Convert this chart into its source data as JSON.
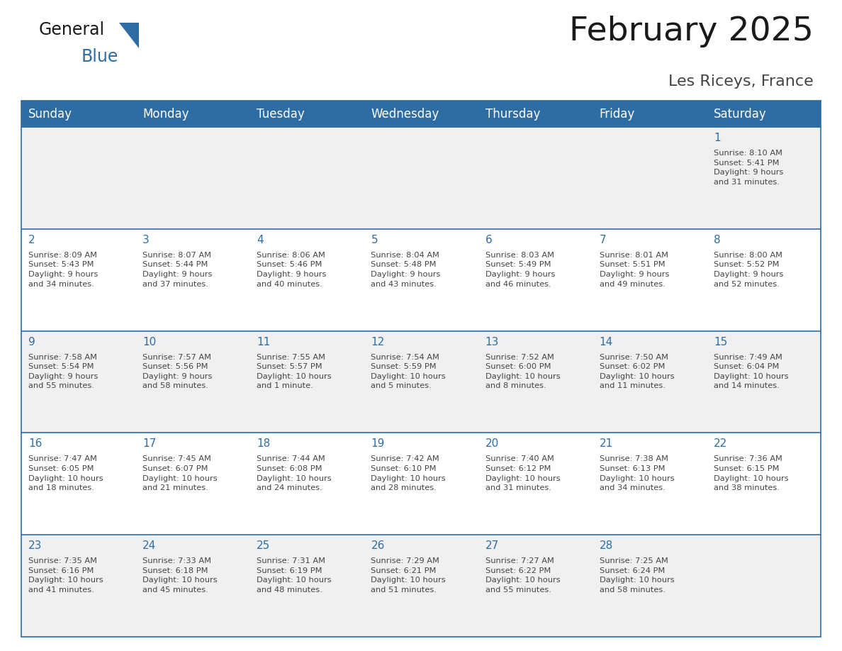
{
  "title": "February 2025",
  "subtitle": "Les Riceys, France",
  "header_bg_color": "#2E6DA4",
  "header_text_color": "#FFFFFF",
  "row_bg_even": "#FFFFFF",
  "row_bg_odd": "#F0F0F0",
  "border_color": "#2E6DA4",
  "day_number_color": "#2E6DA4",
  "cell_text_color": "#444444",
  "days_of_week": [
    "Sunday",
    "Monday",
    "Tuesday",
    "Wednesday",
    "Thursday",
    "Friday",
    "Saturday"
  ],
  "weeks": [
    [
      {
        "day": "",
        "info": ""
      },
      {
        "day": "",
        "info": ""
      },
      {
        "day": "",
        "info": ""
      },
      {
        "day": "",
        "info": ""
      },
      {
        "day": "",
        "info": ""
      },
      {
        "day": "",
        "info": ""
      },
      {
        "day": "1",
        "info": "Sunrise: 8:10 AM\nSunset: 5:41 PM\nDaylight: 9 hours\nand 31 minutes."
      }
    ],
    [
      {
        "day": "2",
        "info": "Sunrise: 8:09 AM\nSunset: 5:43 PM\nDaylight: 9 hours\nand 34 minutes."
      },
      {
        "day": "3",
        "info": "Sunrise: 8:07 AM\nSunset: 5:44 PM\nDaylight: 9 hours\nand 37 minutes."
      },
      {
        "day": "4",
        "info": "Sunrise: 8:06 AM\nSunset: 5:46 PM\nDaylight: 9 hours\nand 40 minutes."
      },
      {
        "day": "5",
        "info": "Sunrise: 8:04 AM\nSunset: 5:48 PM\nDaylight: 9 hours\nand 43 minutes."
      },
      {
        "day": "6",
        "info": "Sunrise: 8:03 AM\nSunset: 5:49 PM\nDaylight: 9 hours\nand 46 minutes."
      },
      {
        "day": "7",
        "info": "Sunrise: 8:01 AM\nSunset: 5:51 PM\nDaylight: 9 hours\nand 49 minutes."
      },
      {
        "day": "8",
        "info": "Sunrise: 8:00 AM\nSunset: 5:52 PM\nDaylight: 9 hours\nand 52 minutes."
      }
    ],
    [
      {
        "day": "9",
        "info": "Sunrise: 7:58 AM\nSunset: 5:54 PM\nDaylight: 9 hours\nand 55 minutes."
      },
      {
        "day": "10",
        "info": "Sunrise: 7:57 AM\nSunset: 5:56 PM\nDaylight: 9 hours\nand 58 minutes."
      },
      {
        "day": "11",
        "info": "Sunrise: 7:55 AM\nSunset: 5:57 PM\nDaylight: 10 hours\nand 1 minute."
      },
      {
        "day": "12",
        "info": "Sunrise: 7:54 AM\nSunset: 5:59 PM\nDaylight: 10 hours\nand 5 minutes."
      },
      {
        "day": "13",
        "info": "Sunrise: 7:52 AM\nSunset: 6:00 PM\nDaylight: 10 hours\nand 8 minutes."
      },
      {
        "day": "14",
        "info": "Sunrise: 7:50 AM\nSunset: 6:02 PM\nDaylight: 10 hours\nand 11 minutes."
      },
      {
        "day": "15",
        "info": "Sunrise: 7:49 AM\nSunset: 6:04 PM\nDaylight: 10 hours\nand 14 minutes."
      }
    ],
    [
      {
        "day": "16",
        "info": "Sunrise: 7:47 AM\nSunset: 6:05 PM\nDaylight: 10 hours\nand 18 minutes."
      },
      {
        "day": "17",
        "info": "Sunrise: 7:45 AM\nSunset: 6:07 PM\nDaylight: 10 hours\nand 21 minutes."
      },
      {
        "day": "18",
        "info": "Sunrise: 7:44 AM\nSunset: 6:08 PM\nDaylight: 10 hours\nand 24 minutes."
      },
      {
        "day": "19",
        "info": "Sunrise: 7:42 AM\nSunset: 6:10 PM\nDaylight: 10 hours\nand 28 minutes."
      },
      {
        "day": "20",
        "info": "Sunrise: 7:40 AM\nSunset: 6:12 PM\nDaylight: 10 hours\nand 31 minutes."
      },
      {
        "day": "21",
        "info": "Sunrise: 7:38 AM\nSunset: 6:13 PM\nDaylight: 10 hours\nand 34 minutes."
      },
      {
        "day": "22",
        "info": "Sunrise: 7:36 AM\nSunset: 6:15 PM\nDaylight: 10 hours\nand 38 minutes."
      }
    ],
    [
      {
        "day": "23",
        "info": "Sunrise: 7:35 AM\nSunset: 6:16 PM\nDaylight: 10 hours\nand 41 minutes."
      },
      {
        "day": "24",
        "info": "Sunrise: 7:33 AM\nSunset: 6:18 PM\nDaylight: 10 hours\nand 45 minutes."
      },
      {
        "day": "25",
        "info": "Sunrise: 7:31 AM\nSunset: 6:19 PM\nDaylight: 10 hours\nand 48 minutes."
      },
      {
        "day": "26",
        "info": "Sunrise: 7:29 AM\nSunset: 6:21 PM\nDaylight: 10 hours\nand 51 minutes."
      },
      {
        "day": "27",
        "info": "Sunrise: 7:27 AM\nSunset: 6:22 PM\nDaylight: 10 hours\nand 55 minutes."
      },
      {
        "day": "28",
        "info": "Sunrise: 7:25 AM\nSunset: 6:24 PM\nDaylight: 10 hours\nand 58 minutes."
      },
      {
        "day": "",
        "info": ""
      }
    ]
  ],
  "logo_text_general": "General",
  "logo_text_blue": "Blue",
  "title_fontsize": 34,
  "subtitle_fontsize": 16,
  "header_fontsize": 12,
  "day_number_fontsize": 11,
  "cell_text_fontsize": 8.2
}
